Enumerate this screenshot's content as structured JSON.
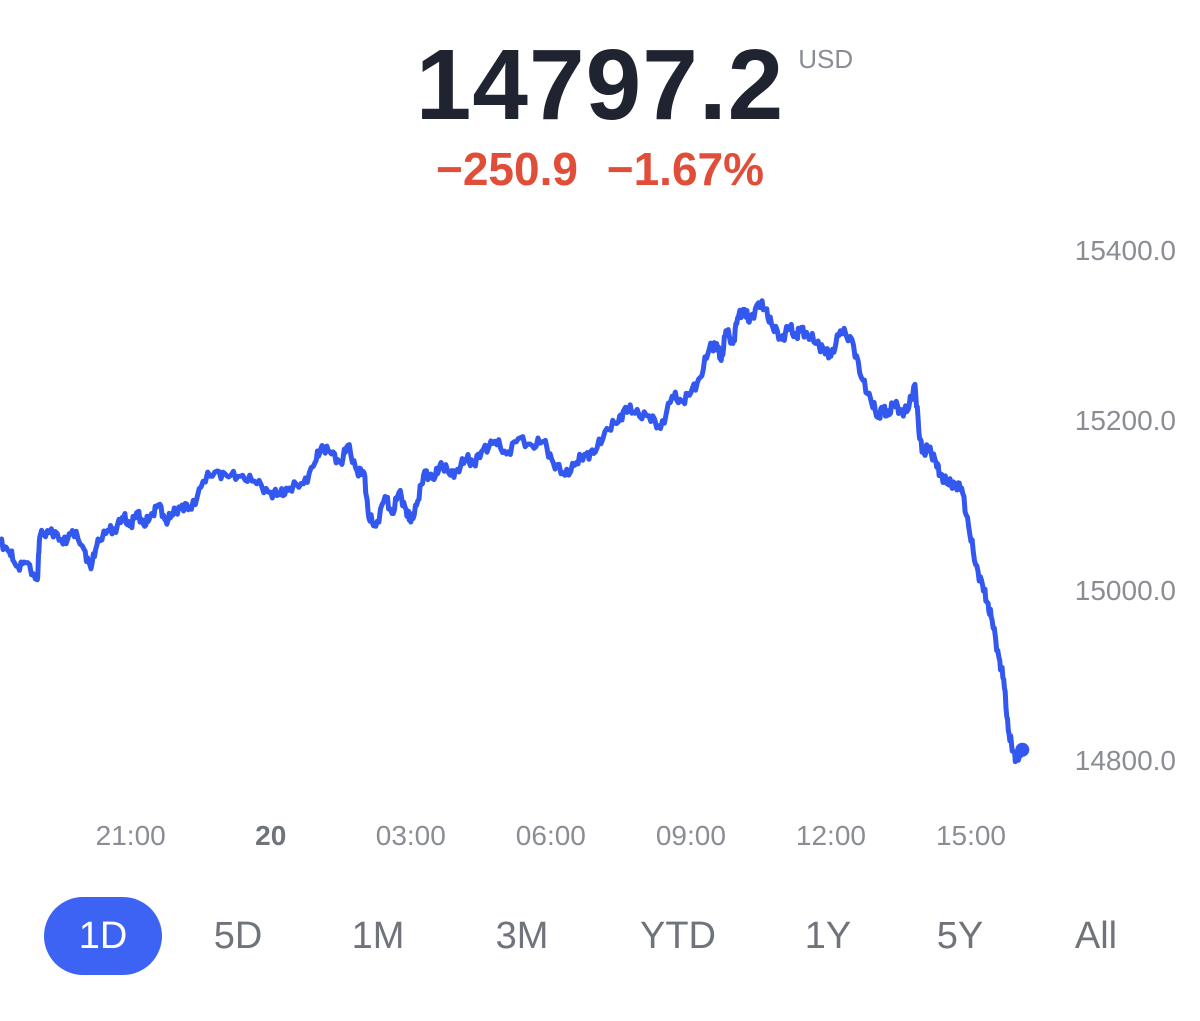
{
  "header": {
    "price": "14797.2",
    "currency": "USD",
    "change_abs": "−250.9",
    "change_pct": "−1.67%"
  },
  "colors": {
    "line": "#3358f0",
    "price": "#1f2430",
    "negative": "#e04e39",
    "axis_text": "#8a8d94",
    "active_range": "#3d63f5"
  },
  "ranges": {
    "items": [
      "1D",
      "5D",
      "1M",
      "3M",
      "YTD",
      "1Y",
      "5Y",
      "All"
    ],
    "selected": "1D"
  },
  "chart_data": {
    "type": "line",
    "title": "",
    "xlabel": "",
    "ylabel": "",
    "grid": false,
    "y_axis_position": "right",
    "ylim": [
      14775,
      15425
    ],
    "xlim": [
      18.2,
      40.2
    ],
    "yticks": [
      "15400.0",
      "15200.0",
      "15000.0",
      "14800.0"
    ],
    "ytick_values": [
      15400,
      15200,
      15000,
      14800
    ],
    "xticks": [
      {
        "label": "21:00",
        "value": 21,
        "bold": false
      },
      {
        "label": "20",
        "value": 24,
        "bold": true
      },
      {
        "label": "03:00",
        "value": 27,
        "bold": false
      },
      {
        "label": "06:00",
        "value": 30,
        "bold": false
      },
      {
        "label": "09:00",
        "value": 33,
        "bold": false
      },
      {
        "label": "12:00",
        "value": 36,
        "bold": false
      },
      {
        "label": "15:00",
        "value": 39,
        "bold": false
      }
    ],
    "series": [
      {
        "x": [
          18.2,
          18.4,
          18.55,
          18.75,
          19.0,
          19.05,
          19.3,
          19.55,
          19.75,
          20.0,
          20.15,
          20.3,
          20.55,
          20.65,
          20.85,
          21.0,
          21.15,
          21.3,
          21.45,
          21.6,
          21.75,
          21.9,
          22.1,
          22.3,
          22.55,
          22.85,
          23.1,
          23.4,
          23.7,
          24.0,
          24.2,
          24.4,
          24.7,
          24.95,
          25.1,
          25.3,
          25.5,
          25.65,
          25.85,
          26.0,
          26.1,
          26.25,
          26.45,
          26.6,
          26.75,
          26.9,
          27.0,
          27.15,
          27.3,
          27.5,
          27.65,
          27.85,
          28.0,
          28.2,
          28.35,
          28.55,
          28.8,
          29.05,
          29.3,
          29.6,
          29.85,
          30.05,
          30.3,
          30.55,
          30.75,
          30.95,
          31.2,
          31.45,
          31.6,
          31.8,
          32.1,
          32.35,
          32.6,
          32.8,
          33.0,
          33.2,
          33.4,
          33.55,
          33.65,
          33.75,
          33.9,
          34.0,
          34.15,
          34.25,
          34.45,
          34.6,
          34.75,
          34.95,
          35.1,
          35.25,
          35.35,
          35.5,
          35.7,
          35.85,
          36.0,
          36.2,
          36.45,
          36.65,
          36.85,
          37.0,
          37.1,
          37.2,
          37.35,
          37.5,
          37.65,
          37.8,
          37.9,
          38.0,
          38.1,
          38.25,
          38.35,
          38.5,
          38.65,
          38.8,
          38.95,
          39.1,
          39.25,
          39.35,
          39.45,
          39.6,
          39.7,
          39.8,
          39.9,
          40.0,
          40.1
        ],
        "y": [
          15058,
          15045,
          15028,
          15032,
          15012,
          15062,
          15072,
          15054,
          15070,
          15048,
          15025,
          15060,
          15070,
          15072,
          15085,
          15076,
          15092,
          15075,
          15090,
          15100,
          15082,
          15088,
          15100,
          15095,
          15128,
          15140,
          15133,
          15135,
          15125,
          15115,
          15112,
          15120,
          15125,
          15150,
          15170,
          15160,
          15150,
          15170,
          15140,
          15138,
          15085,
          15075,
          15110,
          15090,
          15115,
          15095,
          15080,
          15105,
          15140,
          15130,
          15150,
          15135,
          15142,
          15155,
          15148,
          15165,
          15175,
          15160,
          15178,
          15170,
          15175,
          15150,
          15135,
          15150,
          15160,
          15162,
          15190,
          15198,
          15215,
          15208,
          15205,
          15190,
          15228,
          15222,
          15232,
          15250,
          15285,
          15290,
          15270,
          15305,
          15290,
          15320,
          15330,
          15315,
          15338,
          15330,
          15310,
          15295,
          15310,
          15298,
          15308,
          15300,
          15290,
          15283,
          15275,
          15305,
          15295,
          15250,
          15225,
          15203,
          15215,
          15205,
          15220,
          15210,
          15212,
          15242,
          15178,
          15160,
          15168,
          15150,
          15135,
          15125,
          15125,
          15120,
          15075,
          15030,
          15005,
          14985,
          14965,
          14920,
          14895,
          14835,
          14810,
          14800,
          14812
        ]
      }
    ]
  }
}
